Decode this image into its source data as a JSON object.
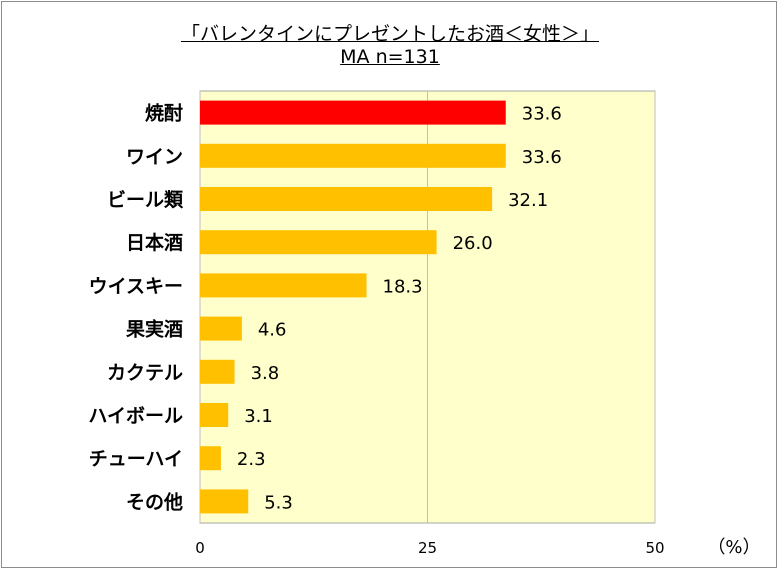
{
  "chart_data": {
    "type": "bar",
    "orientation": "horizontal",
    "title": "「バレンタインにプレゼントしたお酒＜女性＞」",
    "subtitle": "MA n=131",
    "categories": [
      "焼酎",
      "ワイン",
      "ビール類",
      "日本酒",
      "ウイスキー",
      "果実酒",
      "カクテル",
      "ハイボール",
      "チューハイ",
      "その他"
    ],
    "values": [
      33.6,
      33.6,
      32.1,
      26.0,
      18.3,
      4.6,
      3.8,
      3.1,
      2.3,
      5.3
    ],
    "value_labels": [
      "33.6",
      "33.6",
      "32.1",
      "26.0",
      "18.3",
      "4.6",
      "3.8",
      "3.1",
      "2.3",
      "5.3"
    ],
    "xlim": [
      0,
      50
    ],
    "xticks": [
      "0",
      "25",
      "50"
    ],
    "xunit": "（%）",
    "grid": true,
    "colors": {
      "highlight": "#ff0000",
      "bar": "#ffc000",
      "plot_bg": "#ffffcc",
      "grid": "#bfbfbf"
    },
    "highlight_index": 0
  }
}
